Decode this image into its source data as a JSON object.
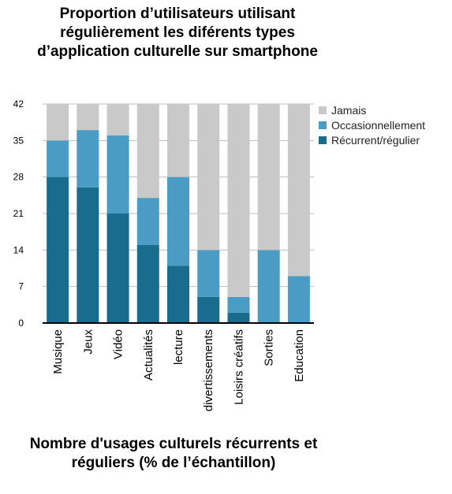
{
  "chart_data": {
    "type": "bar",
    "stacked": true,
    "title": "Proportion d’utilisateurs utilisant régulièrement les diférents types d’application culturelle sur smartphone",
    "xlabel": "Nombre d'usages culturels récurrents et réguliers (% de l’échantillon)",
    "ylabel": "",
    "categories": [
      "Musique",
      "Jeux",
      "Vidéo",
      "Actualités",
      "lecture",
      "divertissements",
      "Loisirs créatifs",
      "Sorties",
      "Education"
    ],
    "series": [
      {
        "name": "Récurrent/régulier",
        "color": "#1a6c8e",
        "values": [
          28,
          26,
          21,
          15,
          11,
          5,
          2,
          0,
          0
        ]
      },
      {
        "name": "Occasionnellement",
        "color": "#4b9cc4",
        "values": [
          7,
          11,
          15,
          9,
          17,
          9,
          3,
          14,
          9
        ]
      },
      {
        "name": "Jamais",
        "color": "#c9c9c9",
        "values": [
          7,
          5,
          6,
          18,
          14,
          28,
          37,
          28,
          33
        ]
      }
    ],
    "yticks": [
      0,
      7,
      14,
      21,
      28,
      35,
      42
    ],
    "ylim": [
      0,
      42
    ],
    "grid": true,
    "legend": "top-right",
    "legend_order": [
      "Jamais",
      "Occasionnellement",
      "Récurrent/régulier"
    ]
  }
}
